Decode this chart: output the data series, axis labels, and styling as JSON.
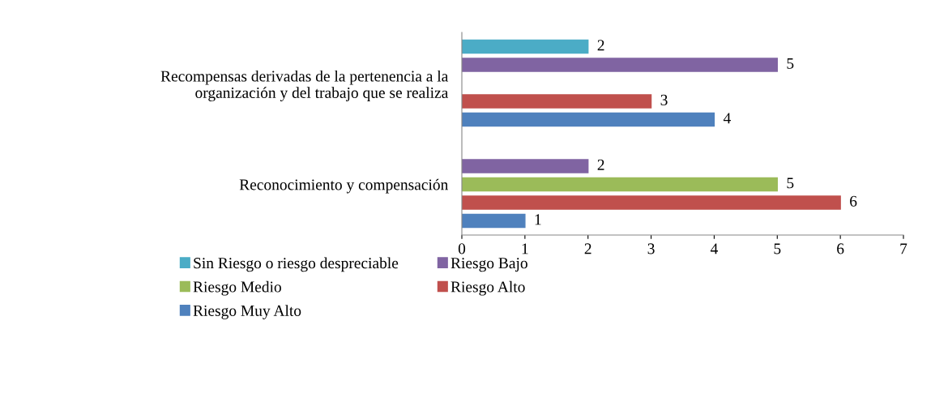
{
  "chart_data": {
    "type": "bar",
    "orientation": "horizontal",
    "categories": [
      "Recompensas derivadas de la pertenencia a la\norganización y del trabajo que se realiza",
      "Reconocimiento y compensación"
    ],
    "series": [
      {
        "name": "Sin Riesgo o riesgo despreciable",
        "color": "#4bacc6",
        "values": [
          2,
          null
        ]
      },
      {
        "name": "Riesgo Bajo",
        "color": "#8064a2",
        "values": [
          5,
          2
        ]
      },
      {
        "name": "Riesgo Medio",
        "color": "#9bbb59",
        "values": [
          null,
          5
        ]
      },
      {
        "name": "Riesgo Alto",
        "color": "#c0504d",
        "values": [
          3,
          6
        ]
      },
      {
        "name": "Riesgo Muy Alto",
        "color": "#4f81bd",
        "values": [
          4,
          1
        ]
      }
    ],
    "xlim": [
      0,
      7
    ],
    "xticks": [
      0,
      1,
      2,
      3,
      4,
      5,
      6,
      7
    ],
    "grid": false,
    "legend": "bottom",
    "data_labels": true
  }
}
